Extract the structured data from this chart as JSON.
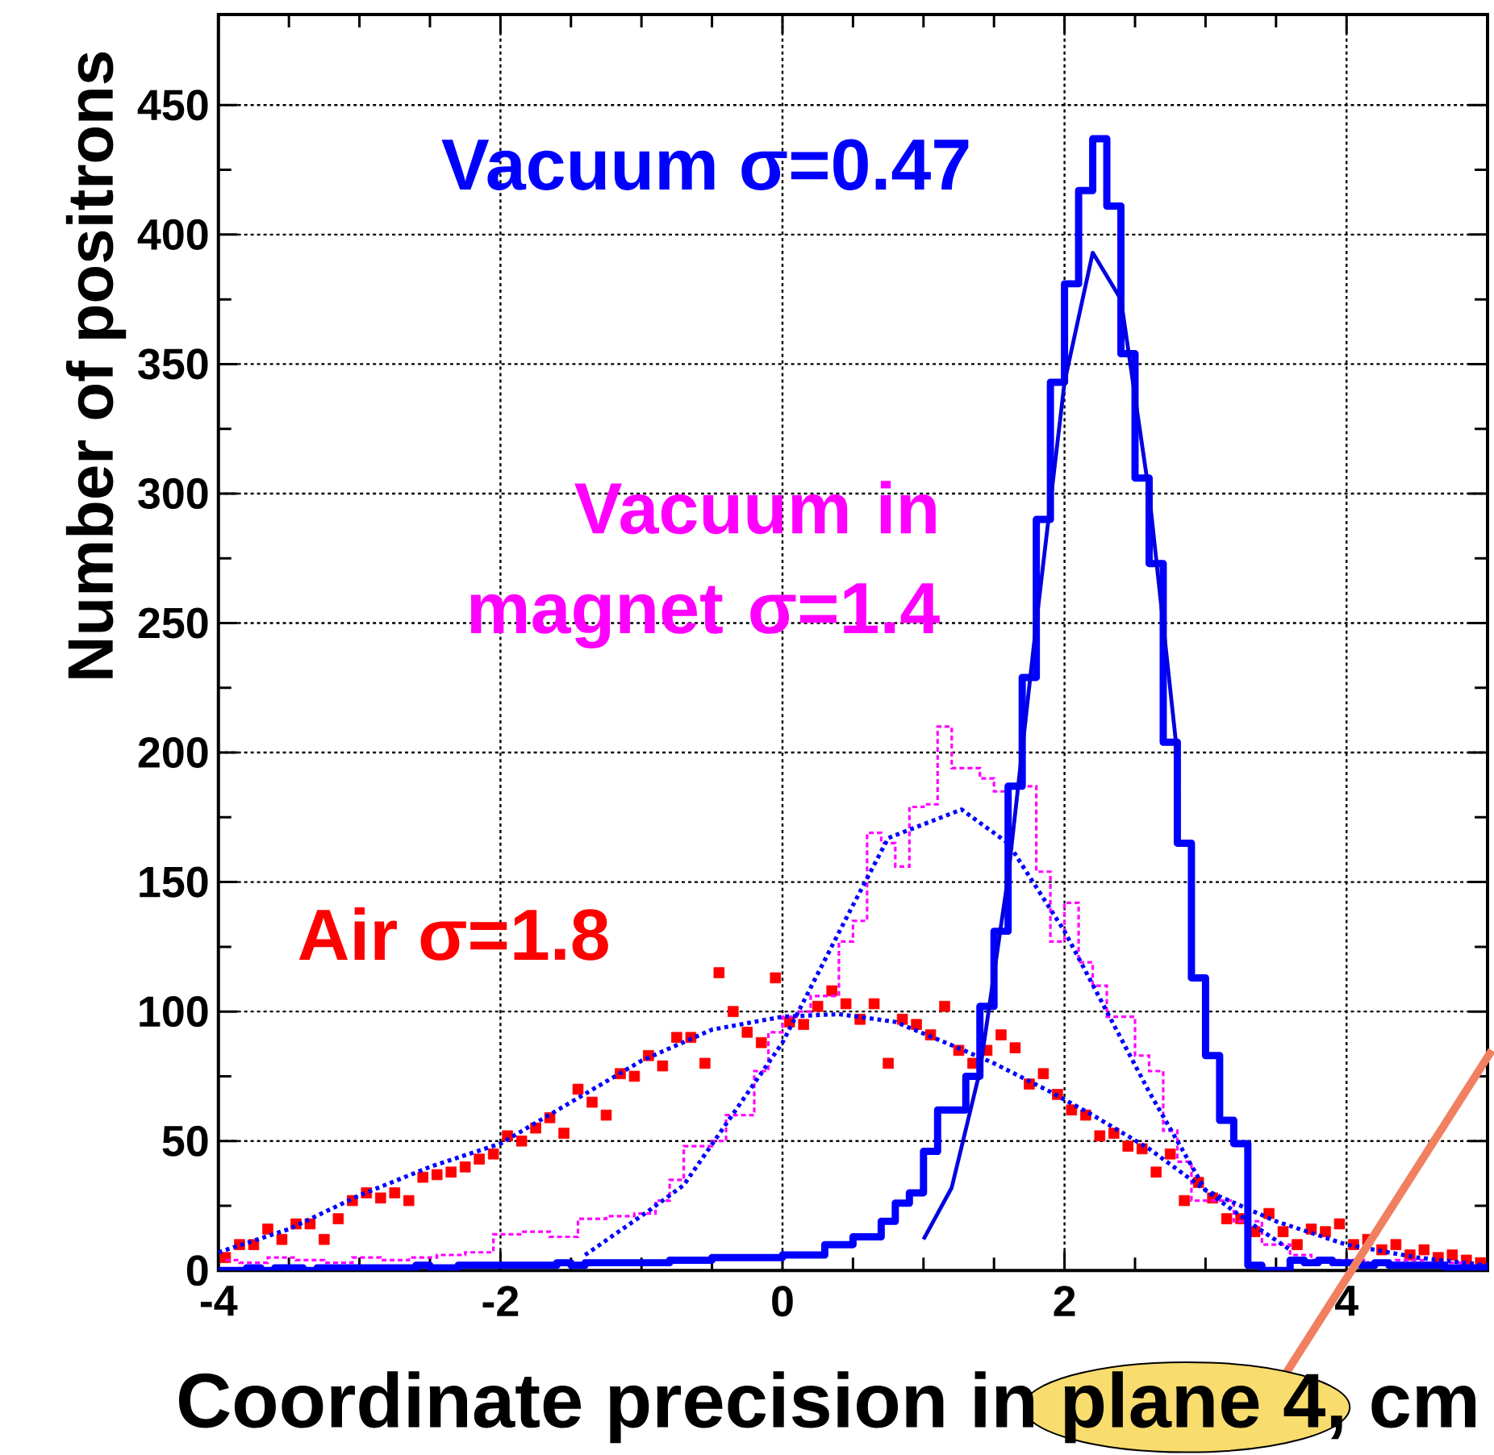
{
  "chart_data": {
    "type": "histogram",
    "xlabel": "Coordinate precision in plane 4, cm",
    "ylabel": "Number of positrons",
    "xlim": [
      -4,
      5
    ],
    "ylim": [
      0,
      485
    ],
    "xticks": [
      -4,
      -2,
      0,
      2,
      4
    ],
    "yticks": [
      0,
      50,
      100,
      150,
      200,
      250,
      300,
      350,
      400,
      450
    ],
    "grid": true,
    "series": [
      {
        "name": "Air σ=1.8",
        "type": "scatter",
        "color": "#ff0000",
        "marker": "square",
        "x": [
          -3.95,
          -3.85,
          -3.75,
          -3.65,
          -3.55,
          -3.45,
          -3.35,
          -3.25,
          -3.15,
          -3.05,
          -2.95,
          -2.85,
          -2.75,
          -2.65,
          -2.55,
          -2.45,
          -2.35,
          -2.25,
          -2.15,
          -2.05,
          -1.95,
          -1.85,
          -1.75,
          -1.65,
          -1.55,
          -1.45,
          -1.35,
          -1.25,
          -1.15,
          -1.05,
          -0.95,
          -0.85,
          -0.75,
          -0.65,
          -0.55,
          -0.45,
          -0.35,
          -0.25,
          -0.15,
          -0.05,
          0.05,
          0.15,
          0.25,
          0.35,
          0.45,
          0.55,
          0.65,
          0.75,
          0.85,
          0.95,
          1.05,
          1.15,
          1.25,
          1.35,
          1.45,
          1.55,
          1.65,
          1.75,
          1.85,
          1.95,
          2.05,
          2.15,
          2.25,
          2.35,
          2.45,
          2.55,
          2.65,
          2.75,
          2.85,
          2.95,
          3.05,
          3.15,
          3.25,
          3.35,
          3.45,
          3.55,
          3.65,
          3.75,
          3.85,
          3.95,
          4.05,
          4.15,
          4.25,
          4.35,
          4.45,
          4.55,
          4.65,
          4.75,
          4.85,
          4.95
        ],
        "values": [
          5,
          10,
          10,
          16,
          12,
          18,
          18,
          12,
          20,
          27,
          30,
          28,
          30,
          27,
          36,
          37,
          38,
          40,
          43,
          45,
          52,
          50,
          55,
          59,
          53,
          70,
          65,
          60,
          76,
          75,
          83,
          79,
          90,
          90,
          80,
          115,
          100,
          92,
          88,
          113,
          96,
          95,
          102,
          108,
          103,
          97,
          103,
          80,
          97,
          95,
          91,
          102,
          85,
          80,
          85,
          91,
          86,
          72,
          76,
          68,
          62,
          60,
          52,
          53,
          48,
          47,
          38,
          45,
          27,
          34,
          28,
          20,
          20,
          15,
          22,
          15,
          10,
          16,
          15,
          18,
          10,
          12,
          8,
          10,
          6,
          8,
          5,
          6,
          4,
          3
        ]
      },
      {
        "name": "Vacuum in magnet σ=1.4",
        "type": "step",
        "color": "#ff00ff",
        "line_style": "dashed",
        "x": [
          -3.95,
          -3.75,
          -3.55,
          -3.35,
          -3.15,
          -2.95,
          -2.75,
          -2.55,
          -2.35,
          -2.15,
          -1.95,
          -1.75,
          -1.55,
          -1.35,
          -1.15,
          -0.95,
          -0.85,
          -0.75,
          -0.65,
          -0.55,
          -0.45,
          -0.35,
          -0.25,
          -0.15,
          -0.05,
          0.05,
          0.15,
          0.25,
          0.35,
          0.45,
          0.55,
          0.65,
          0.75,
          0.85,
          0.95,
          1.05,
          1.15,
          1.25,
          1.35,
          1.45,
          1.55,
          1.65,
          1.75,
          1.85,
          1.95,
          2.05,
          2.15,
          2.25,
          2.35,
          2.45,
          2.55,
          2.65,
          2.75,
          2.85,
          2.95,
          3.05,
          3.15,
          3.25,
          3.35,
          3.45,
          3.55,
          3.65,
          3.85,
          4.05,
          4.25,
          4.45,
          4.65,
          4.85
        ],
        "values": [
          4,
          3,
          5,
          4,
          3,
          5,
          4,
          5,
          6,
          7,
          14,
          15,
          13,
          20,
          21,
          22,
          27,
          35,
          48,
          48,
          50,
          60,
          60,
          77,
          92,
          98,
          100,
          106,
          106,
          127,
          135,
          169,
          165,
          156,
          179,
          180,
          210,
          194,
          194,
          190,
          185,
          187,
          187,
          154,
          127,
          142,
          119,
          110,
          98,
          98,
          83,
          77,
          54,
          42,
          27,
          27,
          27,
          19,
          19,
          10,
          10,
          6,
          4,
          4,
          3,
          4,
          3,
          3
        ]
      },
      {
        "type": "line",
        "color": "#0000ff",
        "line_style": "dotted",
        "x": [
          -4,
          -3.5,
          -3,
          -2.5,
          -2,
          -1.5,
          -1,
          -0.5,
          0,
          0.4,
          0.8,
          1.2,
          1.5,
          1.9,
          2.2,
          2.6,
          3,
          3.5,
          4,
          4.5,
          5
        ],
        "values": [
          7,
          16,
          29,
          40,
          49,
          65,
          81,
          93,
          98,
          99,
          96,
          87,
          80,
          69,
          60,
          47,
          31,
          19,
          10,
          5,
          2
        ]
      },
      {
        "type": "line",
        "color": "#0000ff",
        "line_style": "dotted",
        "x": [
          -1.4,
          -0.95,
          -0.7,
          0,
          0.48,
          0.75,
          1.27,
          1.6,
          2,
          2.3,
          2.6,
          3,
          3.3,
          3.6
        ],
        "values": [
          6,
          23,
          33,
          88,
          139,
          167,
          178,
          165,
          131,
          100,
          69,
          31,
          19,
          8
        ]
      },
      {
        "name": "Vacuum σ=0.47",
        "color": "#0000ff",
        "bins": [
          -4,
          -3.9,
          -3.8,
          -3.7,
          -3.6,
          -3.5,
          -3.4,
          -3.3,
          -3.2,
          -3.1,
          -3,
          -2.9,
          -2.8,
          -2.7,
          -2.6,
          -2.5,
          -2.4,
          -2.3,
          -2.2,
          -2.1,
          -2,
          -1.9,
          -1.8,
          -1.7,
          -1.6,
          -1.5,
          -1.4,
          -1.3,
          -1.2,
          -1.1,
          -1,
          -0.9,
          -0.8,
          -0.7,
          -0.6,
          -0.5,
          -0.4,
          -0.3,
          -0.2,
          -0.1,
          0,
          0.1,
          0.2,
          0.3,
          0.4,
          0.5,
          0.6,
          0.7,
          0.8,
          0.9,
          1,
          1.1,
          1.2,
          1.3,
          1.4,
          1.5,
          1.6,
          1.7,
          1.8,
          1.9,
          2,
          2.1,
          2.2,
          2.3,
          2.4,
          2.5,
          2.6,
          2.7,
          2.8,
          2.9,
          3,
          3.1,
          3.2,
          3.3,
          3.4,
          3.5,
          3.6,
          3.7,
          3.8,
          3.9,
          4,
          4.1,
          4.2,
          4.3,
          4.4,
          4.5,
          4.6,
          4.7,
          4.8,
          4.9,
          5
        ],
        "values": [
          0,
          0,
          1,
          0,
          1,
          1,
          0,
          1,
          1,
          1,
          1,
          1,
          1,
          1,
          2,
          1,
          1,
          2,
          2,
          2,
          2,
          2,
          2,
          2,
          3,
          2,
          3,
          3,
          3,
          3,
          3,
          3,
          4,
          4,
          4,
          5,
          5,
          5,
          5,
          5,
          6,
          6,
          6,
          10,
          10,
          13,
          13,
          19,
          26,
          30,
          46,
          62,
          62,
          75,
          102,
          131,
          187,
          229,
          290,
          343,
          381,
          417,
          437,
          411,
          354,
          306,
          273,
          204,
          165,
          113,
          83,
          58,
          49,
          2,
          0,
          0,
          4,
          3,
          4,
          3,
          3,
          2,
          3,
          2,
          2,
          2,
          2,
          1,
          1,
          1
        ]
      },
      {
        "type": "line",
        "color": "#0000e0",
        "line_style": "solid",
        "x": [
          1.0,
          1.2,
          1.4,
          1.6,
          1.8,
          2.0,
          2.2,
          2.4,
          2.6,
          2.8
        ],
        "values": [
          12,
          32,
          77,
          152,
          250,
          343,
          393,
          375,
          300,
          199
        ]
      }
    ]
  }
}
